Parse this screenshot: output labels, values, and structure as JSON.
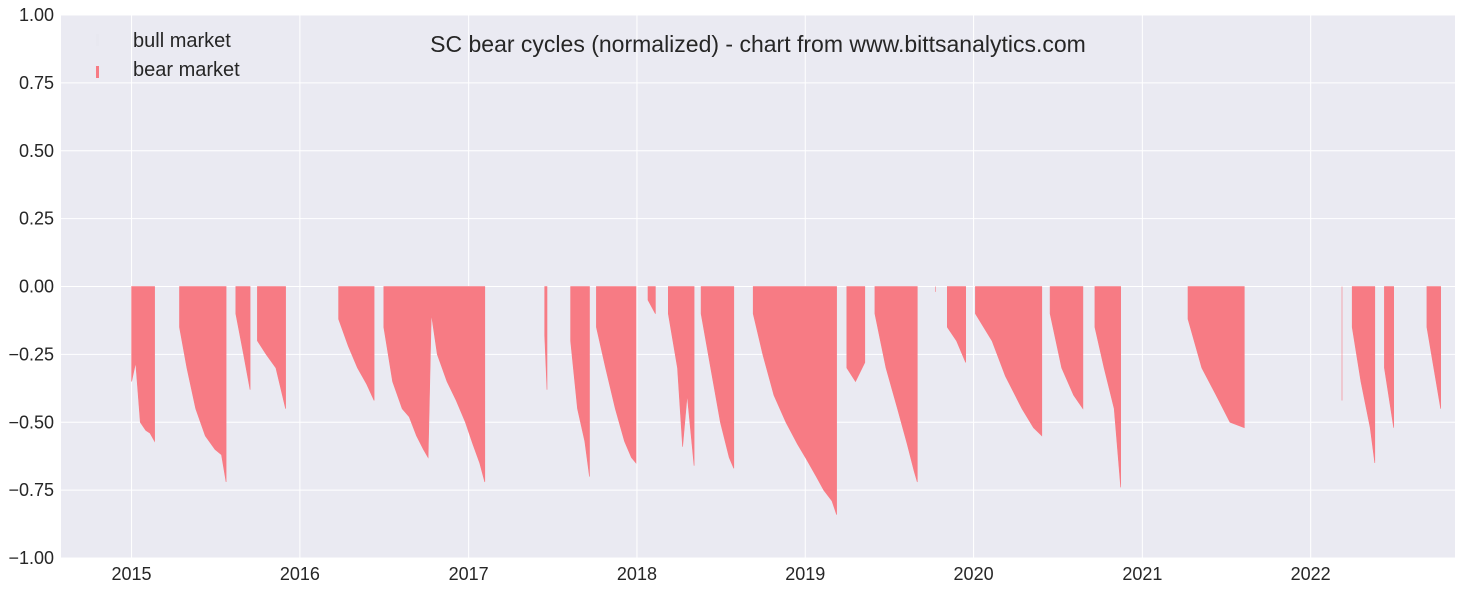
{
  "chart_data": {
    "type": "area",
    "title": "SC bear cycles (normalized)  - chart from www.bittsanalytics.com",
    "xlabel": "",
    "ylabel": "",
    "x_ticks": [
      "2015",
      "2016",
      "2017",
      "2018",
      "2019",
      "2020",
      "2021",
      "2022"
    ],
    "y_ticks": [
      "1.00",
      "0.75",
      "0.50",
      "0.25",
      "0.00",
      "−0.25",
      "−0.50",
      "−0.75",
      "−1.00"
    ],
    "xlim": [
      "2014-08-01",
      "2022-11-10"
    ],
    "ylim": [
      -1.0,
      1.0
    ],
    "grid": true,
    "legend_placement": "top-left",
    "colors": {
      "bull": "#e8e8f0",
      "bear": "#f77b84",
      "background": "#eaeaf2",
      "grid": "#ffffff"
    },
    "series": [
      {
        "name": "bull market",
        "note_visible": "rendered nearly invisible (light tone on background), value at 1.0 during bull periods",
        "intervals": []
      },
      {
        "name": "bear market",
        "drawdown_points": [
          {
            "x": "2015-01-01",
            "y": -0.35
          },
          {
            "x": "2015-01-10",
            "y": -0.28
          },
          {
            "x": "2015-01-20",
            "y": -0.5
          },
          {
            "x": "2015-02-01",
            "y": -0.53
          },
          {
            "x": "2015-02-10",
            "y": -0.54
          },
          {
            "x": "2015-02-20",
            "y": -0.57
          },
          {
            "x": "2015-03-08",
            "y": -0.0
          },
          {
            "x": "2015-04-15",
            "y": -0.15
          },
          {
            "x": "2015-05-01",
            "y": -0.3
          },
          {
            "x": "2015-05-20",
            "y": -0.45
          },
          {
            "x": "2015-06-10",
            "y": -0.55
          },
          {
            "x": "2015-07-01",
            "y": -0.6
          },
          {
            "x": "2015-07-15",
            "y": -0.62
          },
          {
            "x": "2015-07-25",
            "y": -0.72
          },
          {
            "x": "2015-08-05",
            "y": -0.0
          },
          {
            "x": "2015-08-15",
            "y": -0.1
          },
          {
            "x": "2015-09-01",
            "y": -0.25
          },
          {
            "x": "2015-09-15",
            "y": -0.38
          },
          {
            "x": "2015-09-22",
            "y": -0.0
          },
          {
            "x": "2015-10-01",
            "y": -0.2
          },
          {
            "x": "2015-10-20",
            "y": -0.25
          },
          {
            "x": "2015-11-10",
            "y": -0.3
          },
          {
            "x": "2015-12-01",
            "y": -0.45
          },
          {
            "x": "2015-12-05",
            "y": -0.0
          },
          {
            "x": "2016-03-25",
            "y": -0.12
          },
          {
            "x": "2016-04-15",
            "y": -0.22
          },
          {
            "x": "2016-05-05",
            "y": -0.3
          },
          {
            "x": "2016-05-25",
            "y": -0.36
          },
          {
            "x": "2016-06-10",
            "y": -0.42
          },
          {
            "x": "2016-06-15",
            "y": -0.0
          },
          {
            "x": "2016-07-01",
            "y": -0.15
          },
          {
            "x": "2016-07-20",
            "y": -0.35
          },
          {
            "x": "2016-08-10",
            "y": -0.45
          },
          {
            "x": "2016-08-25",
            "y": -0.48
          },
          {
            "x": "2016-09-10",
            "y": -0.55
          },
          {
            "x": "2016-09-25",
            "y": -0.6
          },
          {
            "x": "2016-10-05",
            "y": -0.63
          },
          {
            "x": "2016-10-12",
            "y": -0.1
          },
          {
            "x": "2016-10-25",
            "y": -0.25
          },
          {
            "x": "2016-11-15",
            "y": -0.35
          },
          {
            "x": "2016-12-05",
            "y": -0.42
          },
          {
            "x": "2016-12-25",
            "y": -0.5
          },
          {
            "x": "2017-01-10",
            "y": -0.58
          },
          {
            "x": "2017-01-25",
            "y": -0.65
          },
          {
            "x": "2017-02-05",
            "y": -0.72
          },
          {
            "x": "2017-02-08",
            "y": -0.0
          },
          {
            "x": "2017-06-15",
            "y": -0.18
          },
          {
            "x": "2017-06-20",
            "y": -0.38
          },
          {
            "x": "2017-06-25",
            "y": -0.0
          },
          {
            "x": "2017-08-10",
            "y": -0.2
          },
          {
            "x": "2017-08-25",
            "y": -0.45
          },
          {
            "x": "2017-09-10",
            "y": -0.57
          },
          {
            "x": "2017-09-20",
            "y": -0.7
          },
          {
            "x": "2017-09-26",
            "y": -0.0
          },
          {
            "x": "2017-10-05",
            "y": -0.15
          },
          {
            "x": "2017-10-25",
            "y": -0.3
          },
          {
            "x": "2017-11-15",
            "y": -0.45
          },
          {
            "x": "2017-12-05",
            "y": -0.57
          },
          {
            "x": "2017-12-20",
            "y": -0.63
          },
          {
            "x": "2017-12-30",
            "y": -0.65
          },
          {
            "x": "2018-01-03",
            "y": -0.0
          },
          {
            "x": "2018-01-25",
            "y": -0.05
          },
          {
            "x": "2018-02-10",
            "y": -0.1
          },
          {
            "x": "2018-02-20",
            "y": -0.0
          },
          {
            "x": "2018-03-10",
            "y": -0.1
          },
          {
            "x": "2018-03-30",
            "y": -0.3
          },
          {
            "x": "2018-04-10",
            "y": -0.59
          },
          {
            "x": "2018-04-20",
            "y": -0.4
          },
          {
            "x": "2018-05-05",
            "y": -0.66
          },
          {
            "x": "2018-05-10",
            "y": -0.0
          },
          {
            "x": "2018-05-20",
            "y": -0.1
          },
          {
            "x": "2018-06-10",
            "y": -0.3
          },
          {
            "x": "2018-07-01",
            "y": -0.5
          },
          {
            "x": "2018-07-20",
            "y": -0.63
          },
          {
            "x": "2018-07-30",
            "y": -0.67
          },
          {
            "x": "2018-08-05",
            "y": -0.0
          },
          {
            "x": "2018-09-10",
            "y": -0.1
          },
          {
            "x": "2018-10-01",
            "y": -0.25
          },
          {
            "x": "2018-10-25",
            "y": -0.4
          },
          {
            "x": "2018-11-20",
            "y": -0.5
          },
          {
            "x": "2018-12-15",
            "y": -0.58
          },
          {
            "x": "2019-01-05",
            "y": -0.64
          },
          {
            "x": "2019-01-25",
            "y": -0.7
          },
          {
            "x": "2019-02-10",
            "y": -0.75
          },
          {
            "x": "2019-02-28",
            "y": -0.79
          },
          {
            "x": "2019-03-10",
            "y": -0.84
          },
          {
            "x": "2019-03-15",
            "y": -0.0
          },
          {
            "x": "2019-04-01",
            "y": -0.3
          },
          {
            "x": "2019-04-20",
            "y": -0.35
          },
          {
            "x": "2019-05-10",
            "y": -0.28
          },
          {
            "x": "2019-05-20",
            "y": -0.0
          },
          {
            "x": "2019-06-01",
            "y": -0.1
          },
          {
            "x": "2019-06-25",
            "y": -0.3
          },
          {
            "x": "2019-07-20",
            "y": -0.45
          },
          {
            "x": "2019-08-10",
            "y": -0.58
          },
          {
            "x": "2019-08-25",
            "y": -0.68
          },
          {
            "x": "2019-09-01",
            "y": -0.72
          },
          {
            "x": "2019-09-03",
            "y": -0.0
          },
          {
            "x": "2019-10-10",
            "y": -0.02
          },
          {
            "x": "2019-10-12",
            "y": -0.0
          },
          {
            "x": "2019-11-05",
            "y": -0.15
          },
          {
            "x": "2019-11-25",
            "y": -0.2
          },
          {
            "x": "2019-12-15",
            "y": -0.28
          },
          {
            "x": "2019-12-25",
            "y": -0.0
          },
          {
            "x": "2020-01-05",
            "y": -0.1
          },
          {
            "x": "2020-02-10",
            "y": -0.2
          },
          {
            "x": "2020-03-10",
            "y": -0.33
          },
          {
            "x": "2020-04-15",
            "y": -0.45
          },
          {
            "x": "2020-05-10",
            "y": -0.52
          },
          {
            "x": "2020-05-28",
            "y": -0.55
          },
          {
            "x": "2020-06-05",
            "y": -0.0
          },
          {
            "x": "2020-06-15",
            "y": -0.1
          },
          {
            "x": "2020-07-10",
            "y": -0.3
          },
          {
            "x": "2020-08-05",
            "y": -0.4
          },
          {
            "x": "2020-08-25",
            "y": -0.45
          },
          {
            "x": "2020-09-05",
            "y": -0.0
          },
          {
            "x": "2020-09-20",
            "y": -0.15
          },
          {
            "x": "2020-10-10",
            "y": -0.3
          },
          {
            "x": "2020-11-01",
            "y": -0.45
          },
          {
            "x": "2020-11-15",
            "y": -0.74
          },
          {
            "x": "2020-11-18",
            "y": -0.0
          },
          {
            "x": "2021-04-10",
            "y": -0.12
          },
          {
            "x": "2021-05-10",
            "y": -0.3
          },
          {
            "x": "2021-06-10",
            "y": -0.4
          },
          {
            "x": "2021-07-10",
            "y": -0.5
          },
          {
            "x": "2021-08-10",
            "y": -0.52
          },
          {
            "x": "2021-08-25",
            "y": -0.0
          },
          {
            "x": "2022-03-05",
            "y": -0.0
          },
          {
            "x": "2022-03-10",
            "y": -0.42
          },
          {
            "x": "2022-03-20",
            "y": -0.0
          },
          {
            "x": "2022-04-01",
            "y": -0.15
          },
          {
            "x": "2022-04-20",
            "y": -0.35
          },
          {
            "x": "2022-05-10",
            "y": -0.52
          },
          {
            "x": "2022-05-20",
            "y": -0.65
          },
          {
            "x": "2022-06-01",
            "y": -0.0
          },
          {
            "x": "2022-06-10",
            "y": -0.3
          },
          {
            "x": "2022-06-30",
            "y": -0.52
          },
          {
            "x": "2022-07-10",
            "y": -0.0
          },
          {
            "x": "2022-09-10",
            "y": -0.15
          },
          {
            "x": "2022-09-25",
            "y": -0.3
          },
          {
            "x": "2022-10-10",
            "y": -0.45
          },
          {
            "x": "2022-10-15",
            "y": -0.0
          }
        ]
      }
    ]
  }
}
